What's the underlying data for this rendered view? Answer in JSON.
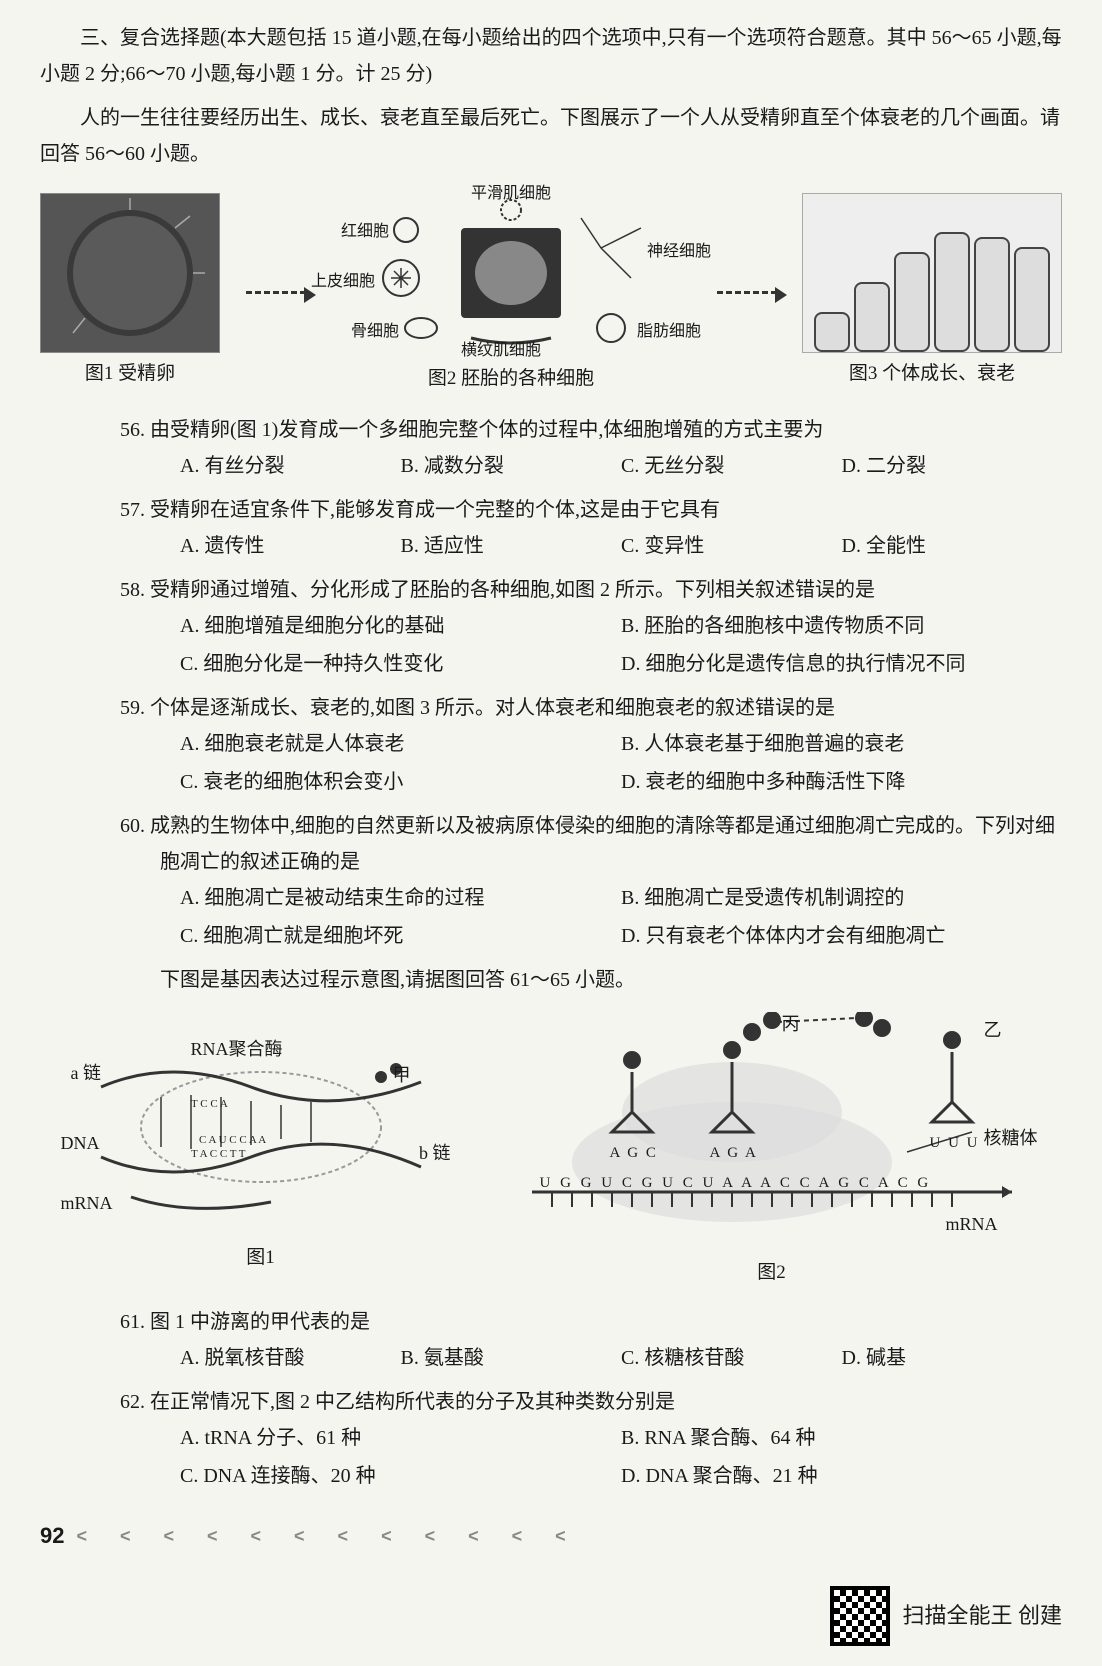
{
  "section": {
    "header": "三、复合选择题(本大题包括 15 道小题,在每小题给出的四个选项中,只有一个选项符合题意。其中 56～65 小题,每小题 2 分;66～70 小题,每小题 1 分。计 25 分)",
    "intro": "人的一生往往要经历出生、成长、衰老直至最后死亡。下图展示了一个人从受精卵直至个体衰老的几个画面。请回答 56～60 小题。"
  },
  "figure1": {
    "img1_caption": "图1 受精卵",
    "img2_caption": "图2 胚胎的各种细胞",
    "img3_caption": "图3 个体成长、衰老",
    "labels": {
      "top": "平滑肌细胞",
      "red": "红细胞",
      "epi": "上皮细胞",
      "bone": "骨细胞",
      "stri": "横纹肌细胞",
      "fat": "脂肪细胞",
      "nerve": "神经细胞"
    }
  },
  "questions_a": [
    {
      "num": "56.",
      "text": "由受精卵(图 1)发育成一个多细胞完整个体的过程中,体细胞增殖的方式主要为",
      "cols": "four-col",
      "options": [
        "A. 有丝分裂",
        "B. 减数分裂",
        "C. 无丝分裂",
        "D. 二分裂"
      ]
    },
    {
      "num": "57.",
      "text": "受精卵在适宜条件下,能够发育成一个完整的个体,这是由于它具有",
      "cols": "four-col",
      "options": [
        "A. 遗传性",
        "B. 适应性",
        "C. 变异性",
        "D. 全能性"
      ]
    },
    {
      "num": "58.",
      "text": "受精卵通过增殖、分化形成了胚胎的各种细胞,如图 2 所示。下列相关叙述错误的是",
      "cols": "two-col",
      "options": [
        "A. 细胞增殖是细胞分化的基础",
        "B. 胚胎的各细胞核中遗传物质不同",
        "C. 细胞分化是一种持久性变化",
        "D. 细胞分化是遗传信息的执行情况不同"
      ]
    },
    {
      "num": "59.",
      "text": "个体是逐渐成长、衰老的,如图 3 所示。对人体衰老和细胞衰老的叙述错误的是",
      "cols": "two-col",
      "options": [
        "A. 细胞衰老就是人体衰老",
        "B. 人体衰老基于细胞普遍的衰老",
        "C. 衰老的细胞体积会变小",
        "D. 衰老的细胞中多种酶活性下降"
      ]
    },
    {
      "num": "60.",
      "text": "成熟的生物体中,细胞的自然更新以及被病原体侵染的细胞的清除等都是通过细胞凋亡完成的。下列对细胞凋亡的叙述正确的是",
      "cols": "two-col",
      "options": [
        "A. 细胞凋亡是被动结束生命的过程",
        "B. 细胞凋亡是受遗传机制调控的",
        "C. 细胞凋亡就是细胞坏死",
        "D. 只有衰老个体体内才会有细胞凋亡"
      ]
    }
  ],
  "intro2": "下图是基因表达过程示意图,请据图回答 61～65 小题。",
  "figure2": {
    "labels": {
      "rna_poly": "RNA聚合酶",
      "a_chain": "a 链",
      "dna": "DNA",
      "mrna": "mRNA",
      "b_chain": "b 链",
      "jia": "甲",
      "bing": "丙",
      "yi": "乙",
      "ribo": "核糖体",
      "codon1": "A G C",
      "codon2": "A G A",
      "codon3": "U U U",
      "mrna_seq": "U G G U C G U C U A A A C C A G C A C G",
      "mrna_label": "mRNA"
    },
    "caption1": "图1",
    "caption2": "图2"
  },
  "questions_b": [
    {
      "num": "61.",
      "text": "图 1 中游离的甲代表的是",
      "cols": "four-col",
      "options": [
        "A. 脱氧核苷酸",
        "B. 氨基酸",
        "C. 核糖核苷酸",
        "D. 碱基"
      ]
    },
    {
      "num": "62.",
      "text": "在正常情况下,图 2 中乙结构所代表的分子及其种类数分别是",
      "cols": "two-col",
      "options": [
        "A. tRNA 分子、61 种",
        "B. RNA 聚合酶、64 种",
        "C. DNA 连接酶、20 种",
        "D. DNA 聚合酶、21 种"
      ]
    }
  ],
  "footer": {
    "page": "92",
    "chev": "< < < < < < < < < < < <",
    "scan": "扫描全能王  创建"
  },
  "colors": {
    "text": "#1a1a1a",
    "bg": "#f5f5f0",
    "gray": "#888888"
  }
}
